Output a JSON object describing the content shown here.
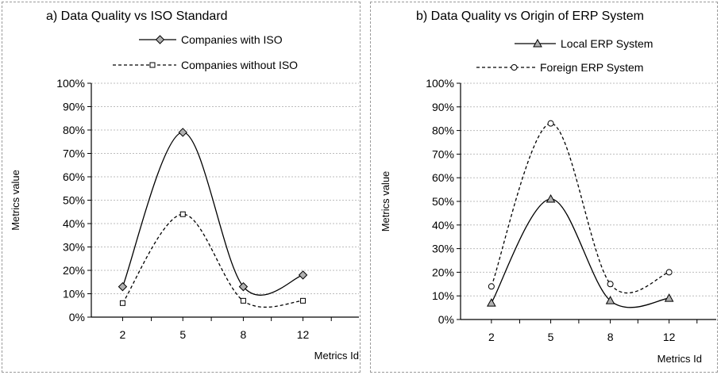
{
  "chart_data": [
    {
      "type": "line",
      "title": "a) Data Quality vs ISO Standard",
      "xlabel": "Metrics Id",
      "ylabel": "Metrics value",
      "categories": [
        "2",
        "5",
        "8",
        "12"
      ],
      "yticks": [
        "0%",
        "10%",
        "20%",
        "30%",
        "40%",
        "50%",
        "60%",
        "70%",
        "80%",
        "90%",
        "100%"
      ],
      "ylim": [
        0,
        100
      ],
      "grid": true,
      "legend_position": "top",
      "series": [
        {
          "name": "Companies with  ISO",
          "values": [
            13,
            79,
            13,
            18
          ],
          "line": "solid",
          "marker": "diamond",
          "marker_fill": "#b0b0b0"
        },
        {
          "name": "Companies without  ISO",
          "values": [
            6,
            44,
            7,
            7
          ],
          "line": "dashed",
          "marker": "square",
          "marker_fill": "#ffffff"
        }
      ]
    },
    {
      "type": "line",
      "title": "b) Data Quality vs Origin of ERP System",
      "xlabel": "Metrics Id",
      "ylabel": "Metrics value",
      "categories": [
        "2",
        "5",
        "8",
        "12"
      ],
      "yticks": [
        "0%",
        "10%",
        "20%",
        "30%",
        "40%",
        "50%",
        "60%",
        "70%",
        "80%",
        "90%",
        "100%"
      ],
      "ylim": [
        0,
        100
      ],
      "grid": true,
      "legend_position": "top",
      "series": [
        {
          "name": "Local ERP System",
          "values": [
            7,
            51,
            8,
            9
          ],
          "line": "solid",
          "marker": "triangle",
          "marker_fill": "#b0b0b0"
        },
        {
          "name": "Foreign ERP System",
          "values": [
            14,
            83,
            15,
            20
          ],
          "line": "dashed",
          "marker": "circle",
          "marker_fill": "#ffffff"
        }
      ]
    }
  ]
}
